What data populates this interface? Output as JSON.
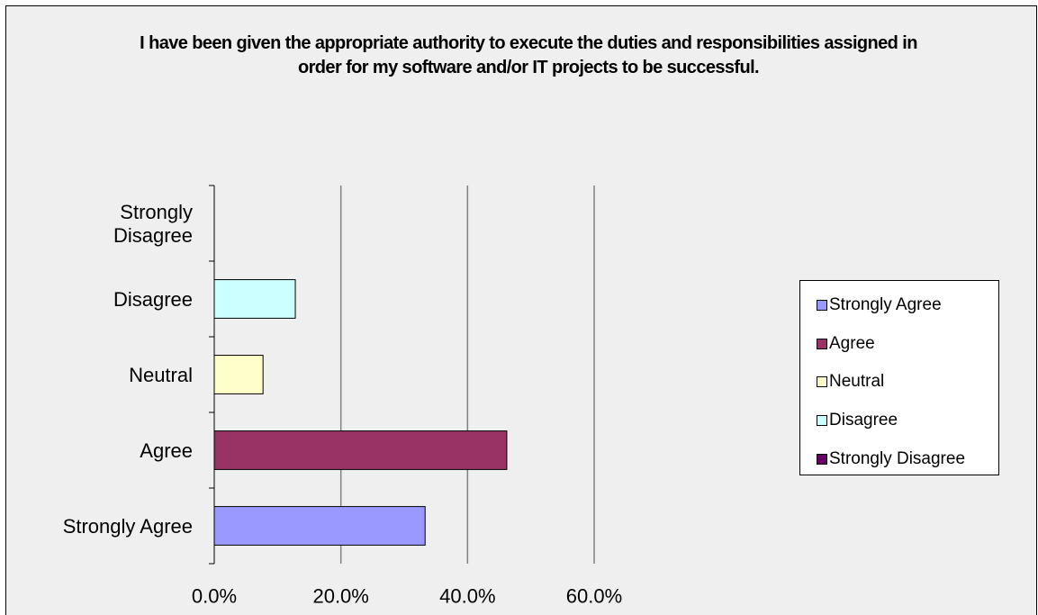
{
  "chart_data": {
    "type": "bar",
    "orientation": "horizontal",
    "title": "I have been given the appropriate authority to execute the duties and responsibilities assigned in order for my software and/or IT projects to be successful.",
    "categories": [
      "Strongly Agree",
      "Agree",
      "Neutral",
      "Disagree",
      "Strongly Disagree"
    ],
    "category_labels": [
      [
        "Strongly Agree"
      ],
      [
        "Agree"
      ],
      [
        "Neutral"
      ],
      [
        "Disagree"
      ],
      [
        "Strongly",
        "Disagree"
      ]
    ],
    "values": [
      33.3,
      46.2,
      7.7,
      12.8,
      0.0
    ],
    "colors": [
      "#9999ff",
      "#993366",
      "#ffffcc",
      "#ccffff",
      "#660066"
    ],
    "xlim": [
      0,
      60
    ],
    "xticks": [
      0,
      20,
      40,
      60
    ],
    "xtick_labels": [
      "0.0%",
      "20.0%",
      "40.0%",
      "60.0%"
    ],
    "grid": "vertical",
    "legend": {
      "position": "right",
      "items": [
        "Strongly Agree",
        "Agree",
        "Neutral",
        "Disagree",
        "Strongly Disagree"
      ]
    }
  }
}
